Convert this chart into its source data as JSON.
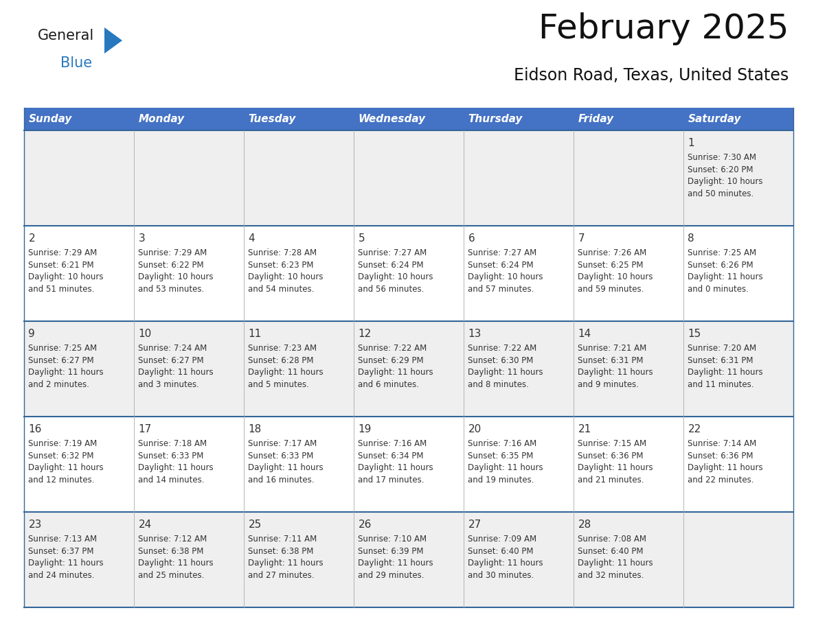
{
  "title": "February 2025",
  "subtitle": "Eidson Road, Texas, United States",
  "header_bg": "#4472C4",
  "header_text_color": "#FFFFFF",
  "days_of_week": [
    "Sunday",
    "Monday",
    "Tuesday",
    "Wednesday",
    "Thursday",
    "Friday",
    "Saturday"
  ],
  "row_bg_even": "#EFEFEF",
  "row_bg_odd": "#FFFFFF",
  "cell_border_color": "#336699",
  "day_number_color": "#333333",
  "info_text_color": "#333333",
  "calendar_data": [
    [
      null,
      null,
      null,
      null,
      null,
      null,
      {
        "day": "1",
        "sunrise": "7:30 AM",
        "sunset": "6:20 PM",
        "daylight": "10 hours\nand 50 minutes."
      }
    ],
    [
      {
        "day": "2",
        "sunrise": "7:29 AM",
        "sunset": "6:21 PM",
        "daylight": "10 hours\nand 51 minutes."
      },
      {
        "day": "3",
        "sunrise": "7:29 AM",
        "sunset": "6:22 PM",
        "daylight": "10 hours\nand 53 minutes."
      },
      {
        "day": "4",
        "sunrise": "7:28 AM",
        "sunset": "6:23 PM",
        "daylight": "10 hours\nand 54 minutes."
      },
      {
        "day": "5",
        "sunrise": "7:27 AM",
        "sunset": "6:24 PM",
        "daylight": "10 hours\nand 56 minutes."
      },
      {
        "day": "6",
        "sunrise": "7:27 AM",
        "sunset": "6:24 PM",
        "daylight": "10 hours\nand 57 minutes."
      },
      {
        "day": "7",
        "sunrise": "7:26 AM",
        "sunset": "6:25 PM",
        "daylight": "10 hours\nand 59 minutes."
      },
      {
        "day": "8",
        "sunrise": "7:25 AM",
        "sunset": "6:26 PM",
        "daylight": "11 hours\nand 0 minutes."
      }
    ],
    [
      {
        "day": "9",
        "sunrise": "7:25 AM",
        "sunset": "6:27 PM",
        "daylight": "11 hours\nand 2 minutes."
      },
      {
        "day": "10",
        "sunrise": "7:24 AM",
        "sunset": "6:27 PM",
        "daylight": "11 hours\nand 3 minutes."
      },
      {
        "day": "11",
        "sunrise": "7:23 AM",
        "sunset": "6:28 PM",
        "daylight": "11 hours\nand 5 minutes."
      },
      {
        "day": "12",
        "sunrise": "7:22 AM",
        "sunset": "6:29 PM",
        "daylight": "11 hours\nand 6 minutes."
      },
      {
        "day": "13",
        "sunrise": "7:22 AM",
        "sunset": "6:30 PM",
        "daylight": "11 hours\nand 8 minutes."
      },
      {
        "day": "14",
        "sunrise": "7:21 AM",
        "sunset": "6:31 PM",
        "daylight": "11 hours\nand 9 minutes."
      },
      {
        "day": "15",
        "sunrise": "7:20 AM",
        "sunset": "6:31 PM",
        "daylight": "11 hours\nand 11 minutes."
      }
    ],
    [
      {
        "day": "16",
        "sunrise": "7:19 AM",
        "sunset": "6:32 PM",
        "daylight": "11 hours\nand 12 minutes."
      },
      {
        "day": "17",
        "sunrise": "7:18 AM",
        "sunset": "6:33 PM",
        "daylight": "11 hours\nand 14 minutes."
      },
      {
        "day": "18",
        "sunrise": "7:17 AM",
        "sunset": "6:33 PM",
        "daylight": "11 hours\nand 16 minutes."
      },
      {
        "day": "19",
        "sunrise": "7:16 AM",
        "sunset": "6:34 PM",
        "daylight": "11 hours\nand 17 minutes."
      },
      {
        "day": "20",
        "sunrise": "7:16 AM",
        "sunset": "6:35 PM",
        "daylight": "11 hours\nand 19 minutes."
      },
      {
        "day": "21",
        "sunrise": "7:15 AM",
        "sunset": "6:36 PM",
        "daylight": "11 hours\nand 21 minutes."
      },
      {
        "day": "22",
        "sunrise": "7:14 AM",
        "sunset": "6:36 PM",
        "daylight": "11 hours\nand 22 minutes."
      }
    ],
    [
      {
        "day": "23",
        "sunrise": "7:13 AM",
        "sunset": "6:37 PM",
        "daylight": "11 hours\nand 24 minutes."
      },
      {
        "day": "24",
        "sunrise": "7:12 AM",
        "sunset": "6:38 PM",
        "daylight": "11 hours\nand 25 minutes."
      },
      {
        "day": "25",
        "sunrise": "7:11 AM",
        "sunset": "6:38 PM",
        "daylight": "11 hours\nand 27 minutes."
      },
      {
        "day": "26",
        "sunrise": "7:10 AM",
        "sunset": "6:39 PM",
        "daylight": "11 hours\nand 29 minutes."
      },
      {
        "day": "27",
        "sunrise": "7:09 AM",
        "sunset": "6:40 PM",
        "daylight": "11 hours\nand 30 minutes."
      },
      {
        "day": "28",
        "sunrise": "7:08 AM",
        "sunset": "6:40 PM",
        "daylight": "11 hours\nand 32 minutes."
      },
      null
    ]
  ],
  "logo_general_color": "#1a1a1a",
  "logo_blue_color": "#2878BE",
  "logo_triangle_color": "#2878BE",
  "title_fontsize": 36,
  "subtitle_fontsize": 17,
  "header_fontsize": 11,
  "day_num_fontsize": 11,
  "info_fontsize": 8.5
}
